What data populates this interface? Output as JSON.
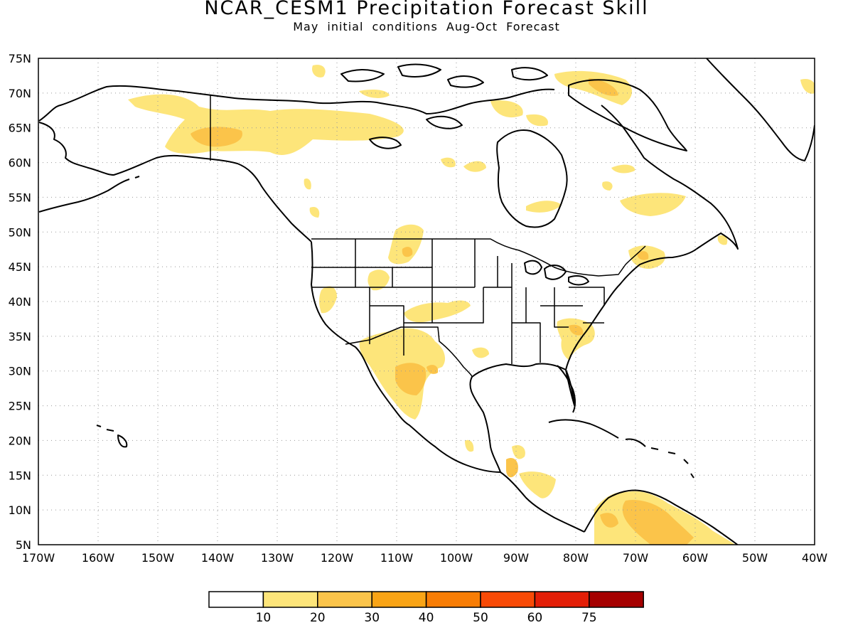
{
  "header": {
    "title": "NCAR_CESM1 Precipitation Forecast Skill",
    "subtitle": "May initial conditions  Aug-Oct Forecast"
  },
  "map": {
    "projection": "lat-lon",
    "lon_range": [
      -170,
      -40
    ],
    "lat_range": [
      5,
      75
    ],
    "grid": "dotted",
    "lon_ticks": [
      "170W",
      "160W",
      "150W",
      "140W",
      "130W",
      "120W",
      "110W",
      "100W",
      "90W",
      "80W",
      "70W",
      "60W",
      "50W",
      "40W"
    ],
    "lat_ticks": [
      "5N",
      "10N",
      "15N",
      "20N",
      "25N",
      "30N",
      "35N",
      "40N",
      "45N",
      "50N",
      "55N",
      "60N",
      "65N",
      "70N",
      "75N"
    ]
  },
  "legend": {
    "labels": [
      "10",
      "20",
      "30",
      "40",
      "50",
      "60",
      "75"
    ],
    "colors": [
      "#ffffff",
      "#fde57a",
      "#fbc44a",
      "#f9a416",
      "#f87d05",
      "#f84a06",
      "#e31e07",
      "#a50000"
    ]
  },
  "skill_regions": [
    {
      "lon": -141,
      "lat": 64,
      "level": 2
    },
    {
      "lon": -134,
      "lat": 63,
      "level": 1
    },
    {
      "lon": -117,
      "lat": 64.5,
      "level": 1
    },
    {
      "lon": -145,
      "lat": 69,
      "level": 1
    },
    {
      "lon": -109,
      "lat": 50,
      "level": 1
    },
    {
      "lon": -111,
      "lat": 44,
      "level": 1
    },
    {
      "lon": -122,
      "lat": 41,
      "level": 1
    },
    {
      "lon": -106,
      "lat": 39,
      "level": 1
    },
    {
      "lon": -105,
      "lat": 29,
      "level": 2
    },
    {
      "lon": -109,
      "lat": 33,
      "level": 1
    },
    {
      "lon": -80,
      "lat": 36,
      "level": 1
    },
    {
      "lon": -75,
      "lat": 46,
      "level": 1
    },
    {
      "lon": -74,
      "lat": 72,
      "level": 2
    },
    {
      "lon": -82,
      "lat": 54,
      "level": 1
    },
    {
      "lon": -68,
      "lat": 54,
      "level": 1
    },
    {
      "lon": -67,
      "lat": 8,
      "level": 2
    },
    {
      "lon": -73,
      "lat": 9,
      "level": 1
    },
    {
      "lon": -87,
      "lat": 16,
      "level": 1
    },
    {
      "lon": -92,
      "lat": 61,
      "level": 1
    },
    {
      "lon": -107,
      "lat": 71,
      "level": 1
    }
  ]
}
